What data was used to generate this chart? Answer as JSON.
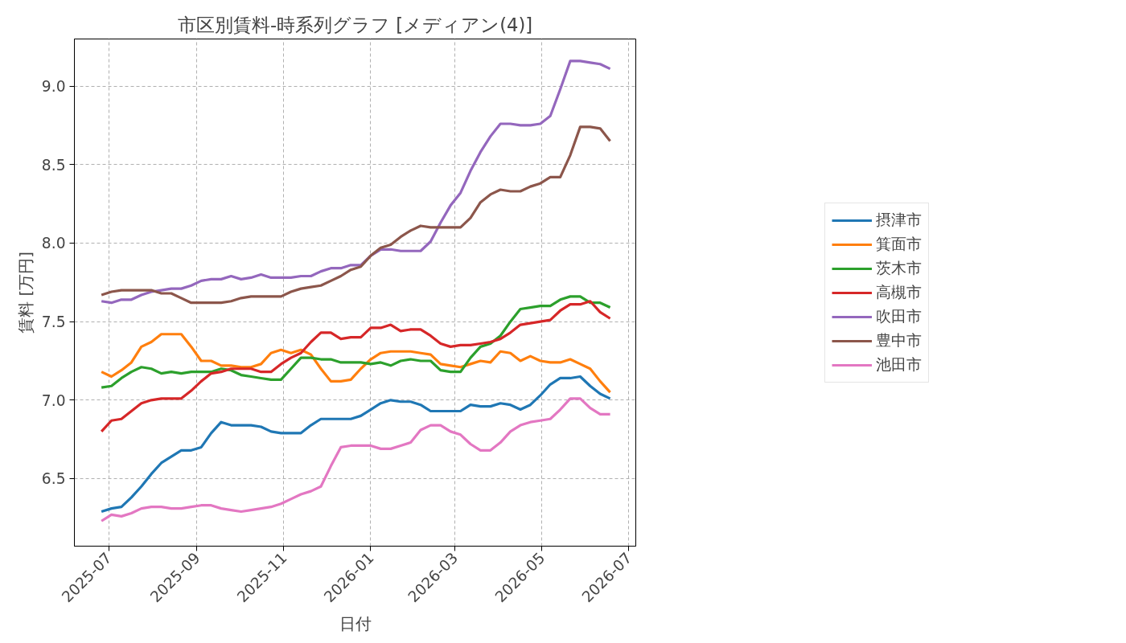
{
  "chart_data": {
    "type": "line",
    "title": "市区別賃料-時系列グラフ [メディアン(4)]",
    "xlabel": "日付",
    "ylabel": "賃料 [万円]",
    "x": [
      "2025-06-26",
      "2025-07-03",
      "2025-07-10",
      "2025-07-17",
      "2025-07-24",
      "2025-07-31",
      "2025-08-07",
      "2025-08-14",
      "2025-08-21",
      "2025-08-28",
      "2025-09-04",
      "2025-09-11",
      "2025-09-18",
      "2025-09-25",
      "2025-10-02",
      "2025-10-09",
      "2025-10-16",
      "2025-10-23",
      "2025-10-30",
      "2025-11-06",
      "2025-11-13",
      "2025-11-20",
      "2025-11-27",
      "2025-12-04",
      "2025-12-11",
      "2025-12-18",
      "2025-12-25",
      "2026-01-01",
      "2026-01-08",
      "2026-01-15",
      "2026-01-22",
      "2026-01-29",
      "2026-02-05",
      "2026-02-12",
      "2026-02-19",
      "2026-02-26",
      "2026-03-05",
      "2026-03-12",
      "2026-03-19",
      "2026-03-26",
      "2026-04-02",
      "2026-04-09",
      "2026-04-16",
      "2026-04-23",
      "2026-04-30",
      "2026-05-07",
      "2026-05-14",
      "2026-05-21",
      "2026-05-28",
      "2026-06-04",
      "2026-06-11",
      "2026-06-18"
    ],
    "series": [
      {
        "name": "摂津市",
        "color": "#1f77b4",
        "values": [
          6.29,
          6.31,
          6.32,
          6.38,
          6.45,
          6.53,
          6.6,
          6.64,
          6.68,
          6.68,
          6.7,
          6.79,
          6.86,
          6.84,
          6.84,
          6.84,
          6.83,
          6.8,
          6.79,
          6.79,
          6.79,
          6.84,
          6.88,
          6.88,
          6.88,
          6.88,
          6.9,
          6.94,
          6.98,
          7.0,
          6.99,
          6.99,
          6.97,
          6.93,
          6.93,
          6.93,
          6.93,
          6.97,
          6.96,
          6.96,
          6.98,
          6.97,
          6.94,
          6.97,
          7.03,
          7.1,
          7.14,
          7.14,
          7.15,
          7.09,
          7.04,
          7.01
        ]
      },
      {
        "name": "箕面市",
        "color": "#ff7f0e",
        "values": [
          7.18,
          7.15,
          7.19,
          7.24,
          7.34,
          7.37,
          7.42,
          7.42,
          7.42,
          7.34,
          7.25,
          7.25,
          7.22,
          7.22,
          7.21,
          7.21,
          7.23,
          7.3,
          7.32,
          7.3,
          7.32,
          7.29,
          7.2,
          7.12,
          7.12,
          7.13,
          7.2,
          7.26,
          7.3,
          7.31,
          7.31,
          7.31,
          7.3,
          7.29,
          7.23,
          7.22,
          7.21,
          7.23,
          7.25,
          7.24,
          7.31,
          7.3,
          7.25,
          7.28,
          7.25,
          7.24,
          7.24,
          7.26,
          7.23,
          7.2,
          7.12,
          7.05
        ]
      },
      {
        "name": "茨木市",
        "color": "#2ca02c",
        "values": [
          7.08,
          7.09,
          7.14,
          7.18,
          7.21,
          7.2,
          7.17,
          7.18,
          7.17,
          7.18,
          7.18,
          7.18,
          7.2,
          7.19,
          7.16,
          7.15,
          7.14,
          7.13,
          7.13,
          7.2,
          7.27,
          7.27,
          7.26,
          7.26,
          7.24,
          7.24,
          7.24,
          7.23,
          7.24,
          7.22,
          7.25,
          7.26,
          7.25,
          7.25,
          7.19,
          7.18,
          7.18,
          7.27,
          7.34,
          7.36,
          7.41,
          7.5,
          7.58,
          7.59,
          7.6,
          7.6,
          7.64,
          7.66,
          7.66,
          7.62,
          7.62,
          7.59
        ]
      },
      {
        "name": "高槻市",
        "color": "#d62728",
        "values": [
          6.8,
          6.87,
          6.88,
          6.93,
          6.98,
          7.0,
          7.01,
          7.01,
          7.01,
          7.06,
          7.12,
          7.17,
          7.18,
          7.2,
          7.2,
          7.2,
          7.18,
          7.18,
          7.23,
          7.27,
          7.3,
          7.37,
          7.43,
          7.43,
          7.39,
          7.4,
          7.4,
          7.46,
          7.46,
          7.48,
          7.44,
          7.45,
          7.45,
          7.41,
          7.36,
          7.34,
          7.35,
          7.35,
          7.36,
          7.37,
          7.39,
          7.43,
          7.48,
          7.49,
          7.5,
          7.51,
          7.57,
          7.61,
          7.61,
          7.63,
          7.56,
          7.52
        ]
      },
      {
        "name": "吹田市",
        "color": "#9467bd",
        "values": [
          7.63,
          7.62,
          7.64,
          7.64,
          7.67,
          7.69,
          7.7,
          7.71,
          7.71,
          7.73,
          7.76,
          7.77,
          7.77,
          7.79,
          7.77,
          7.78,
          7.8,
          7.78,
          7.78,
          7.78,
          7.79,
          7.79,
          7.82,
          7.84,
          7.84,
          7.86,
          7.86,
          7.92,
          7.96,
          7.96,
          7.95,
          7.95,
          7.95,
          8.01,
          8.13,
          8.24,
          8.32,
          8.46,
          8.58,
          8.68,
          8.76,
          8.76,
          8.75,
          8.75,
          8.76,
          8.81,
          8.98,
          9.16,
          9.16,
          9.15,
          9.14,
          9.11
        ]
      },
      {
        "name": "豊中市",
        "color": "#8c564b",
        "values": [
          7.67,
          7.69,
          7.7,
          7.7,
          7.7,
          7.7,
          7.68,
          7.68,
          7.65,
          7.62,
          7.62,
          7.62,
          7.62,
          7.63,
          7.65,
          7.66,
          7.66,
          7.66,
          7.66,
          7.69,
          7.71,
          7.72,
          7.73,
          7.76,
          7.79,
          7.83,
          7.85,
          7.92,
          7.97,
          7.99,
          8.04,
          8.08,
          8.11,
          8.1,
          8.1,
          8.1,
          8.1,
          8.16,
          8.26,
          8.31,
          8.34,
          8.33,
          8.33,
          8.36,
          8.38,
          8.42,
          8.42,
          8.56,
          8.74,
          8.74,
          8.73,
          8.65
        ]
      },
      {
        "name": "池田市",
        "color": "#e377c2",
        "values": [
          6.23,
          6.27,
          6.26,
          6.28,
          6.31,
          6.32,
          6.32,
          6.31,
          6.31,
          6.32,
          6.33,
          6.33,
          6.31,
          6.3,
          6.29,
          6.3,
          6.31,
          6.32,
          6.34,
          6.37,
          6.4,
          6.42,
          6.45,
          6.58,
          6.7,
          6.71,
          6.71,
          6.71,
          6.69,
          6.69,
          6.71,
          6.73,
          6.81,
          6.84,
          6.84,
          6.8,
          6.78,
          6.72,
          6.68,
          6.68,
          6.73,
          6.8,
          6.84,
          6.86,
          6.87,
          6.88,
          6.94,
          7.01,
          7.01,
          6.95,
          6.91,
          6.91
        ]
      }
    ],
    "xlim": [
      "2025-06-07",
      "2026-07-06"
    ],
    "ylim": [
      6.07,
      9.3
    ],
    "xticks": [
      {
        "value": "2025-07-01",
        "label": "2025-07"
      },
      {
        "value": "2025-09-01",
        "label": "2025-09"
      },
      {
        "value": "2025-11-01",
        "label": "2025-11"
      },
      {
        "value": "2026-01-01",
        "label": "2026-01"
      },
      {
        "value": "2026-03-01",
        "label": "2026-03"
      },
      {
        "value": "2026-05-01",
        "label": "2026-05"
      },
      {
        "value": "2026-07-01",
        "label": "2026-07"
      }
    ],
    "yticks": [
      {
        "value": 6.5,
        "label": "6.5"
      },
      {
        "value": 7.0,
        "label": "7.0"
      },
      {
        "value": 7.5,
        "label": "7.5"
      },
      {
        "value": 8.0,
        "label": "8.0"
      },
      {
        "value": 8.5,
        "label": "8.5"
      },
      {
        "value": 9.0,
        "label": "9.0"
      }
    ],
    "grid": true,
    "legend": "right",
    "line_style": "solid",
    "marker": "none"
  }
}
